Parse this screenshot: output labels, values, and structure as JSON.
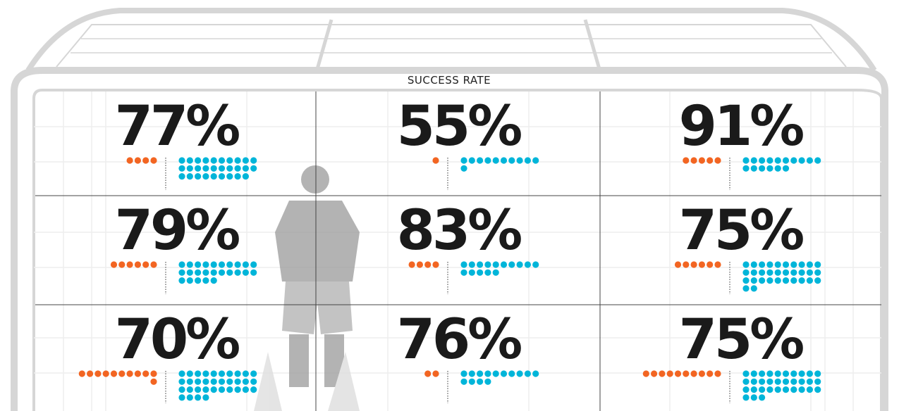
{
  "title": "SUCCESS RATE",
  "zones": [
    {
      "rate": "77%",
      "orange": 4,
      "blue": 29
    },
    {
      "rate": "55%",
      "orange": 1,
      "blue": 11
    },
    {
      "rate": "91%",
      "orange": 5,
      "blue": 16
    },
    {
      "rate": "79%",
      "orange": 6,
      "blue": 25
    },
    {
      "rate": "83%",
      "orange": 4,
      "blue": 15
    },
    {
      "rate": "75%",
      "orange": 6,
      "blue": 32
    },
    {
      "rate": "70%",
      "orange": 11,
      "blue": 34
    },
    {
      "rate": "76%",
      "orange": 2,
      "blue": 14
    },
    {
      "rate": "75%",
      "orange": 10,
      "blue": 33
    }
  ]
}
